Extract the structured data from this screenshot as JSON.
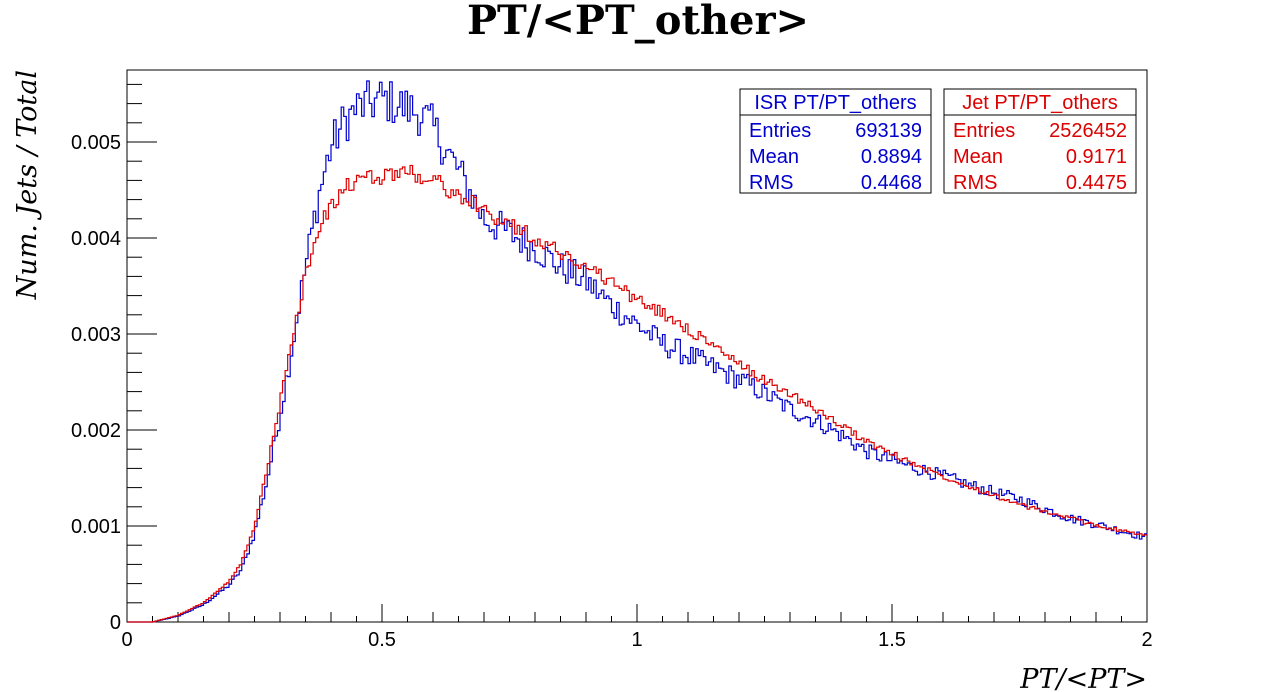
{
  "chart_data": {
    "type": "line",
    "title": "PT/<PT_other>",
    "xlabel": "PT/<PT>",
    "ylabel": "Num. Jets / Total",
    "xlim": [
      0,
      2
    ],
    "ylim": [
      0,
      0.00575
    ],
    "x_ticks": [
      {
        "value": 0,
        "label": "0"
      },
      {
        "value": 0.5,
        "label": "0.5"
      },
      {
        "value": 1,
        "label": "1"
      },
      {
        "value": 1.5,
        "label": "1.5"
      },
      {
        "value": 2,
        "label": "2"
      }
    ],
    "y_ticks": [
      {
        "value": 0,
        "label": "0"
      },
      {
        "value": 0.001,
        "label": "0.001"
      },
      {
        "value": 0.002,
        "label": "0.002"
      },
      {
        "value": 0.003,
        "label": "0.003"
      },
      {
        "value": 0.004,
        "label": "0.004"
      },
      {
        "value": 0.005,
        "label": "0.005"
      }
    ],
    "grid": false,
    "legend_placement": "top-right",
    "series": [
      {
        "name": "ISR PT/PT_others",
        "color": "#0000cc",
        "stats": [
          {
            "label": "Entries",
            "value": "693139"
          },
          {
            "label": "Mean",
            "value": "0.8894"
          },
          {
            "label": "RMS",
            "value": "0.4468"
          }
        ],
        "points": [
          [
            0.0,
            0.0
          ],
          [
            0.05,
            0.0
          ],
          [
            0.1,
            6e-05
          ],
          [
            0.15,
            0.00018
          ],
          [
            0.2,
            0.00038
          ],
          [
            0.225,
            0.00055
          ],
          [
            0.25,
            0.00092
          ],
          [
            0.275,
            0.00148
          ],
          [
            0.3,
            0.00215
          ],
          [
            0.325,
            0.0029
          ],
          [
            0.35,
            0.0037
          ],
          [
            0.375,
            0.00442
          ],
          [
            0.4,
            0.00495
          ],
          [
            0.425,
            0.0052
          ],
          [
            0.45,
            0.00535
          ],
          [
            0.475,
            0.0054
          ],
          [
            0.5,
            0.00545
          ],
          [
            0.525,
            0.0054
          ],
          [
            0.55,
            0.00535
          ],
          [
            0.575,
            0.0053
          ],
          [
            0.6,
            0.00515
          ],
          [
            0.65,
            0.0047
          ],
          [
            0.7,
            0.0042
          ],
          [
            0.75,
            0.00405
          ],
          [
            0.8,
            0.0039
          ],
          [
            0.85,
            0.0037
          ],
          [
            0.9,
            0.00355
          ],
          [
            0.95,
            0.0033
          ],
          [
            1.0,
            0.0031
          ],
          [
            1.05,
            0.0029
          ],
          [
            1.1,
            0.00278
          ],
          [
            1.15,
            0.00265
          ],
          [
            1.2,
            0.00253
          ],
          [
            1.25,
            0.00238
          ],
          [
            1.3,
            0.00222
          ],
          [
            1.35,
            0.0021
          ],
          [
            1.4,
            0.00195
          ],
          [
            1.45,
            0.00178
          ],
          [
            1.5,
            0.00168
          ],
          [
            1.55,
            0.0016
          ],
          [
            1.6,
            0.00152
          ],
          [
            1.65,
            0.00143
          ],
          [
            1.7,
            0.00135
          ],
          [
            1.75,
            0.00128
          ],
          [
            1.8,
            0.00118
          ],
          [
            1.85,
            0.00108
          ],
          [
            1.9,
            0.00102
          ],
          [
            1.95,
            0.00095
          ],
          [
            2.0,
            0.00088
          ]
        ]
      },
      {
        "name": "Jet PT/PT_others",
        "color": "#dd0000",
        "stats": [
          {
            "label": "Entries",
            "value": "2526452"
          },
          {
            "label": "Mean",
            "value": "0.9171"
          },
          {
            "label": "RMS",
            "value": "0.4475"
          }
        ],
        "points": [
          [
            0.0,
            0.0
          ],
          [
            0.05,
            0.0
          ],
          [
            0.1,
            7e-05
          ],
          [
            0.15,
            0.0002
          ],
          [
            0.2,
            0.00042
          ],
          [
            0.225,
            0.00062
          ],
          [
            0.25,
            0.001
          ],
          [
            0.275,
            0.0016
          ],
          [
            0.3,
            0.00228
          ],
          [
            0.325,
            0.00295
          ],
          [
            0.35,
            0.00362
          ],
          [
            0.375,
            0.00405
          ],
          [
            0.4,
            0.00435
          ],
          [
            0.425,
            0.0045
          ],
          [
            0.45,
            0.0046
          ],
          [
            0.475,
            0.00462
          ],
          [
            0.5,
            0.00465
          ],
          [
            0.525,
            0.00468
          ],
          [
            0.55,
            0.0047
          ],
          [
            0.575,
            0.00465
          ],
          [
            0.6,
            0.0046
          ],
          [
            0.65,
            0.00445
          ],
          [
            0.7,
            0.00428
          ],
          [
            0.75,
            0.00415
          ],
          [
            0.8,
            0.004
          ],
          [
            0.85,
            0.00385
          ],
          [
            0.9,
            0.0037
          ],
          [
            0.95,
            0.00355
          ],
          [
            1.0,
            0.00335
          ],
          [
            1.05,
            0.00322
          ],
          [
            1.1,
            0.00305
          ],
          [
            1.15,
            0.00288
          ],
          [
            1.2,
            0.00268
          ],
          [
            1.25,
            0.00252
          ],
          [
            1.3,
            0.00238
          ],
          [
            1.35,
            0.00222
          ],
          [
            1.4,
            0.00205
          ],
          [
            1.45,
            0.00188
          ],
          [
            1.5,
            0.00175
          ],
          [
            1.55,
            0.00163
          ],
          [
            1.6,
            0.00152
          ],
          [
            1.65,
            0.00142
          ],
          [
            1.7,
            0.00132
          ],
          [
            1.75,
            0.00122
          ],
          [
            1.8,
            0.00115
          ],
          [
            1.85,
            0.00108
          ],
          [
            1.9,
            0.00101
          ],
          [
            1.95,
            0.00095
          ],
          [
            2.0,
            0.0009
          ]
        ]
      }
    ]
  }
}
